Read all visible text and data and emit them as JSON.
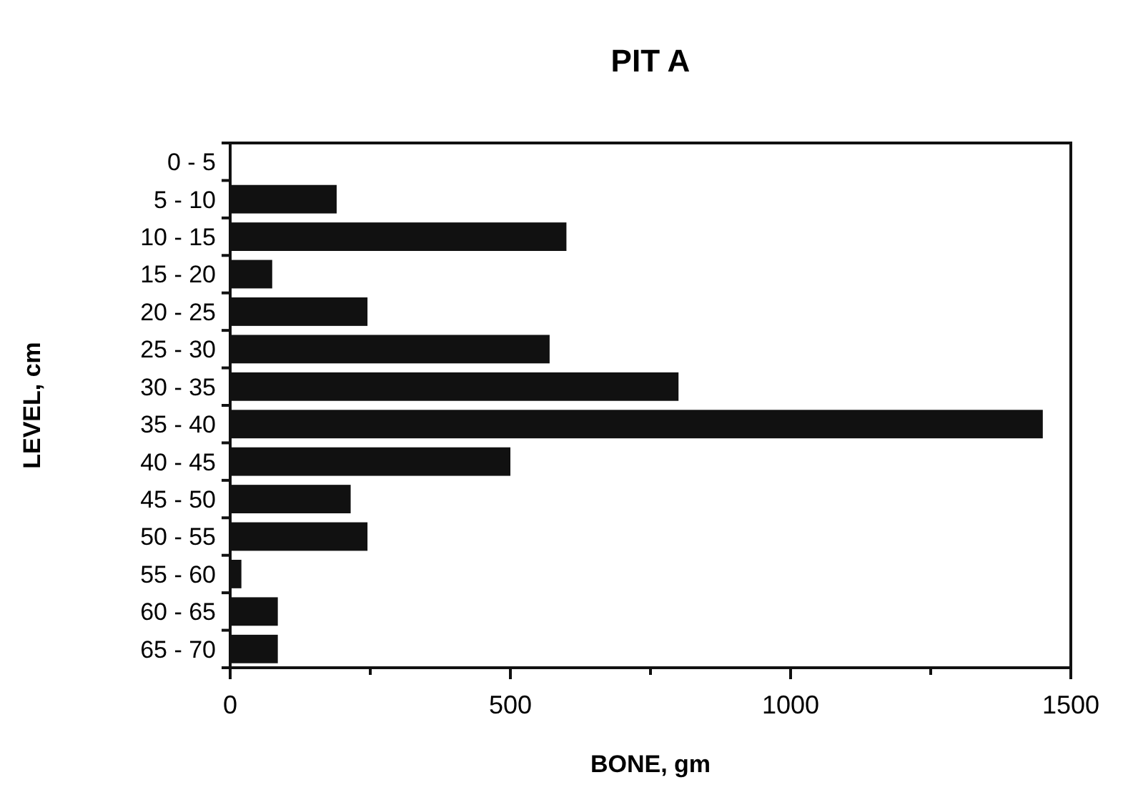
{
  "chart_data": {
    "type": "bar",
    "orientation": "horizontal",
    "title": "PIT A",
    "xlabel": "BONE, gm",
    "ylabel": "LEVEL, cm",
    "categories": [
      "0 - 5",
      "5 - 10",
      "10 - 15",
      "15 - 20",
      "20 - 25",
      "25 - 30",
      "30 - 35",
      "35 - 40",
      "40 - 45",
      "45 - 50",
      "50 - 55",
      "55 - 60",
      "60 - 65",
      "65 - 70"
    ],
    "values": [
      0,
      190,
      600,
      75,
      245,
      570,
      800,
      1450,
      500,
      215,
      245,
      20,
      85,
      85
    ],
    "color": "#111111",
    "xlim": [
      0,
      1500
    ],
    "xticks": [
      0,
      {
        "value": 250,
        "label": null
      },
      500,
      {
        "value": 750,
        "label": null
      },
      1000,
      {
        "value": 1250,
        "label": null
      },
      1500
    ],
    "grid": false
  }
}
